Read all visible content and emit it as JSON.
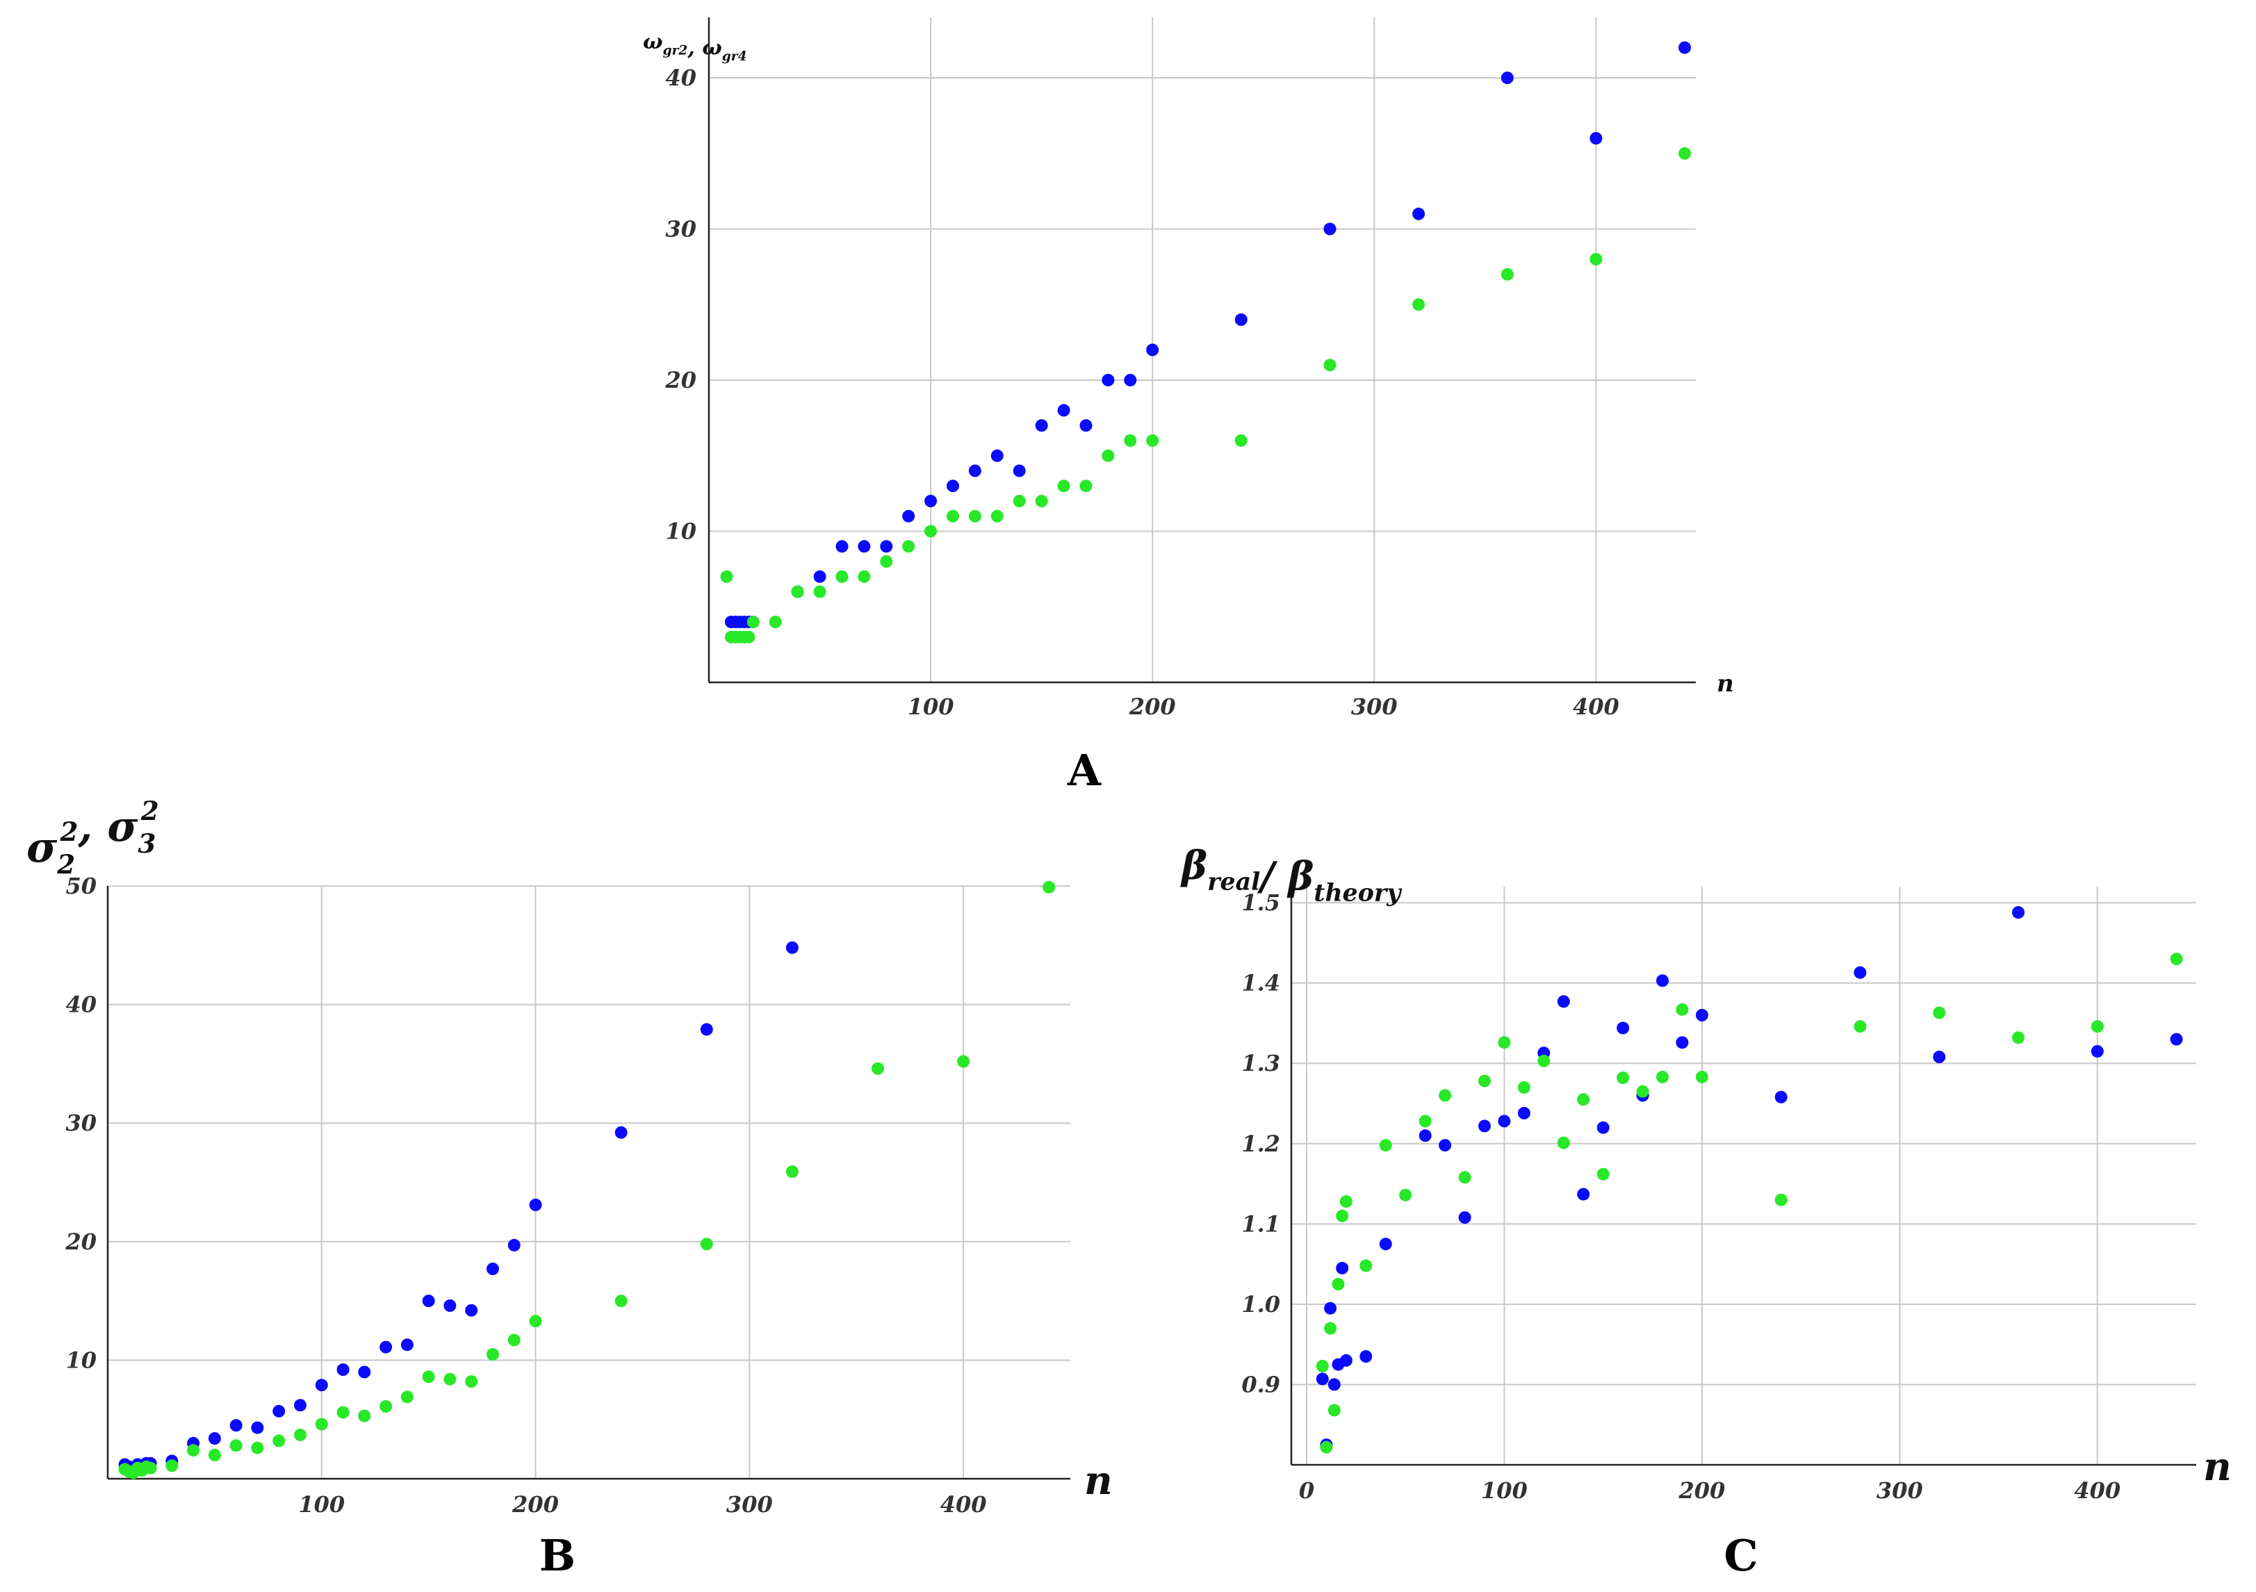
{
  "colors": {
    "series1": "#0a0aff",
    "series2": "#28e828"
  },
  "chart_data": [
    {
      "id": "A",
      "type": "scatter",
      "panel_label": "A",
      "title": "",
      "ylabel_parts": [
        {
          "t": "ω",
          "sub": "gr2"
        },
        {
          "t": ", ω",
          "sub": "gr4"
        }
      ],
      "xlabel": "n",
      "xlim": [
        0,
        445
      ],
      "ylim": [
        0,
        44
      ],
      "xticks": [
        100,
        200,
        300,
        400
      ],
      "yticks": [
        10,
        20,
        30,
        40
      ],
      "grid": true,
      "series": [
        {
          "color_key": "series1",
          "x": [
            10,
            12,
            14,
            16,
            18,
            20,
            40,
            50,
            60,
            70,
            80,
            90,
            100,
            110,
            120,
            130,
            140,
            150,
            160,
            170,
            180,
            190,
            200,
            240,
            280,
            320,
            360,
            400,
            440
          ],
          "y": [
            4,
            4,
            4,
            4,
            4,
            4,
            6,
            7,
            9,
            9,
            9,
            11,
            12,
            13,
            14,
            15,
            14,
            17,
            18,
            17,
            20,
            20,
            22,
            24,
            30,
            31,
            40,
            36,
            42
          ]
        },
        {
          "color_key": "series2",
          "x": [
            8,
            10,
            12,
            14,
            16,
            18,
            20,
            30,
            40,
            50,
            60,
            70,
            80,
            90,
            100,
            110,
            120,
            130,
            140,
            150,
            160,
            170,
            180,
            190,
            200,
            240,
            280,
            320,
            360,
            400,
            440
          ],
          "y": [
            7,
            3,
            3,
            3,
            3,
            3,
            4,
            4,
            6,
            6,
            7,
            7,
            8,
            9,
            10,
            11,
            11,
            11,
            12,
            12,
            13,
            13,
            15,
            16,
            16,
            16,
            21,
            25,
            27,
            28,
            35
          ]
        }
      ]
    },
    {
      "id": "B",
      "type": "scatter",
      "panel_label": "B",
      "title": "",
      "ylabel_parts": [
        {
          "t": "σ",
          "sub": "2",
          "sup": "2"
        },
        {
          "t": ", σ",
          "sub": "3",
          "sup": "2"
        }
      ],
      "xlabel": "n",
      "xlim": [
        0,
        450
      ],
      "ylim": [
        0,
        50
      ],
      "xticks": [
        100,
        200,
        300,
        400
      ],
      "yticks": [
        10,
        20,
        30,
        40,
        50
      ],
      "grid": true,
      "series": [
        {
          "color_key": "series1",
          "x": [
            8,
            10,
            12,
            14,
            16,
            18,
            20,
            30,
            40,
            50,
            60,
            70,
            80,
            90,
            100,
            110,
            120,
            130,
            140,
            150,
            160,
            170,
            180,
            190,
            200,
            240,
            280,
            320
          ],
          "y": [
            1.2,
            1.0,
            0.8,
            1.2,
            1.0,
            1.3,
            1.3,
            1.5,
            3.0,
            3.4,
            4.5,
            4.3,
            5.7,
            6.2,
            7.9,
            9.2,
            9.0,
            11.1,
            11.3,
            15.0,
            14.6,
            14.2,
            17.7,
            19.7,
            23.1,
            29.2,
            37.9,
            44.8
          ]
        },
        {
          "color_key": "series2",
          "x": [
            8,
            10,
            12,
            14,
            16,
            18,
            20,
            30,
            40,
            50,
            60,
            70,
            80,
            90,
            100,
            110,
            120,
            130,
            140,
            150,
            160,
            170,
            180,
            190,
            200,
            240,
            280,
            320,
            360,
            400,
            440
          ],
          "y": [
            0.8,
            0.6,
            0.5,
            0.9,
            0.7,
            1.0,
            0.9,
            1.1,
            2.4,
            2.0,
            2.8,
            2.6,
            3.2,
            3.7,
            4.6,
            5.6,
            5.3,
            6.1,
            6.9,
            8.6,
            8.4,
            8.2,
            10.5,
            11.7,
            13.3,
            15.0,
            19.8,
            25.9,
            34.6,
            35.2,
            49.9
          ]
        }
      ]
    },
    {
      "id": "C",
      "type": "scatter",
      "panel_label": "C",
      "title": "",
      "ylabel_parts": [
        {
          "t": "β",
          "sub": "real"
        },
        {
          "t": "/ β",
          "sub": "theory"
        }
      ],
      "xlabel": "n",
      "xlim": [
        0,
        450
      ],
      "ylim": [
        0.8,
        1.52
      ],
      "xticks": [
        0,
        100,
        200,
        300,
        400
      ],
      "yticks": [
        0.9,
        1.0,
        1.1,
        1.2,
        1.3,
        1.4,
        1.5
      ],
      "ytick_labels": [
        "0.9",
        "1.0",
        "1.1",
        "1.2",
        "1.3",
        "1.4",
        "1.5"
      ],
      "grid": true,
      "series": [
        {
          "color_key": "series1",
          "x": [
            8,
            10,
            12,
            14,
            16,
            18,
            20,
            30,
            40,
            60,
            70,
            80,
            90,
            100,
            110,
            120,
            130,
            140,
            150,
            160,
            170,
            180,
            190,
            200,
            240,
            280,
            320,
            360,
            400,
            440
          ],
          "y": [
            0.907,
            0.825,
            0.995,
            0.9,
            0.925,
            1.045,
            0.93,
            0.935,
            1.075,
            1.21,
            1.198,
            1.108,
            1.222,
            1.228,
            1.238,
            1.313,
            1.377,
            1.137,
            1.22,
            1.344,
            1.26,
            1.403,
            1.326,
            1.36,
            1.258,
            1.413,
            1.308,
            1.488,
            1.315,
            1.33
          ]
        },
        {
          "color_key": "series2",
          "x": [
            8,
            10,
            12,
            14,
            16,
            18,
            20,
            30,
            40,
            50,
            60,
            70,
            80,
            90,
            100,
            110,
            120,
            130,
            140,
            150,
            160,
            170,
            180,
            190,
            200,
            240,
            280,
            320,
            360,
            400,
            440
          ],
          "y": [
            0.923,
            0.822,
            0.97,
            0.868,
            1.025,
            1.11,
            1.128,
            1.048,
            1.198,
            1.136,
            1.228,
            1.26,
            1.158,
            1.278,
            1.326,
            1.27,
            1.303,
            1.201,
            1.255,
            1.162,
            1.282,
            1.265,
            1.283,
            1.367,
            1.283,
            1.13,
            1.346,
            1.363,
            1.332,
            1.346,
            1.43
          ]
        }
      ]
    }
  ]
}
